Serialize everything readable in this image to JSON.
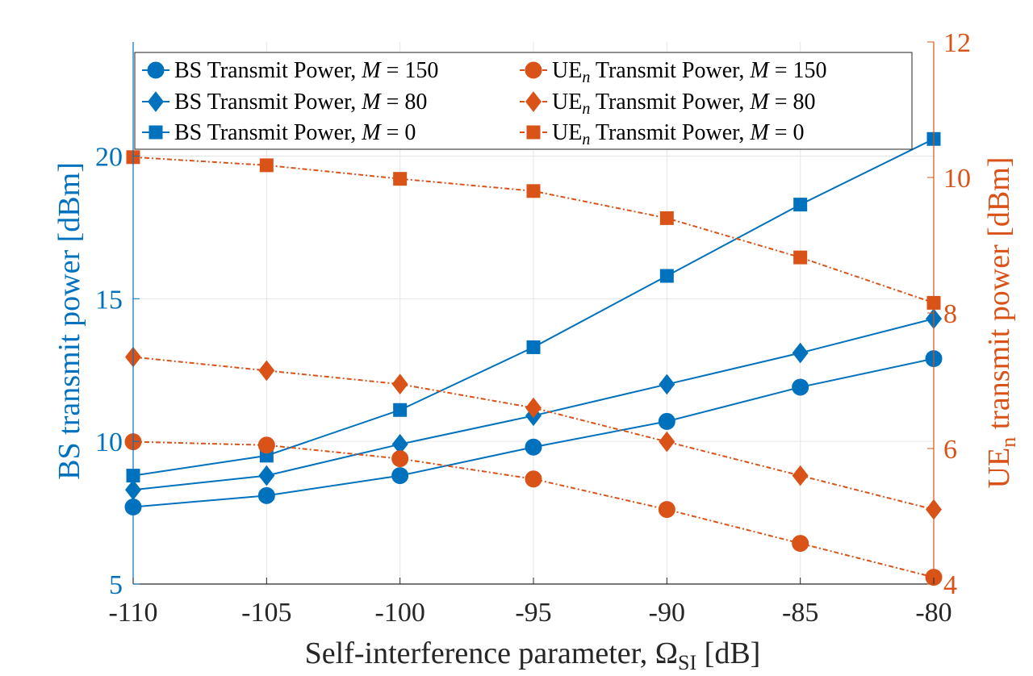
{
  "chart_data": {
    "type": "line",
    "x": [
      -110,
      -105,
      -100,
      -95,
      -90,
      -85,
      -80
    ],
    "xlim": [
      -110,
      -80
    ],
    "x_ticks": [
      "-110",
      "-105",
      "-100",
      "-95",
      "-90",
      "-85",
      "-80"
    ],
    "xlabel": "Self-interference parameter, Ω",
    "xlabel_sub": "SI",
    "xlabel_unit": " [dB]",
    "left_axis": {
      "label": "BS transmit power [dBm]",
      "ylim": [
        5,
        24
      ],
      "ticks": [
        "5",
        "10",
        "15",
        "20"
      ],
      "color": "#0072BD"
    },
    "right_axis": {
      "label": "UE",
      "label_sub": "n",
      "label_rest": " transmit power [dBm]",
      "ylim": [
        4,
        12
      ],
      "ticks": [
        "4",
        "6",
        "8",
        "10",
        "12"
      ],
      "color": "#D95319"
    },
    "grid": true,
    "legend_position": "top",
    "series": [
      {
        "name": "BS Transmit Power, M = 150",
        "axis": "left",
        "marker": "circle",
        "dash": "solid",
        "values": [
          7.7,
          8.1,
          8.8,
          9.8,
          10.7,
          11.9,
          12.9
        ]
      },
      {
        "name": "BS Transmit Power, M = 80",
        "axis": "left",
        "marker": "diamond",
        "dash": "solid",
        "values": [
          8.3,
          8.8,
          9.9,
          10.9,
          12.0,
          13.1,
          14.3
        ]
      },
      {
        "name": "BS Transmit Power, M = 0",
        "axis": "left",
        "marker": "square",
        "dash": "solid",
        "values": [
          8.8,
          9.5,
          11.1,
          13.3,
          15.8,
          18.3,
          20.6
        ]
      },
      {
        "name": "UEn Transmit Power, M = 150",
        "axis": "right",
        "marker": "circle",
        "dash": "dashdot",
        "values": [
          6.1,
          6.05,
          5.85,
          5.55,
          5.1,
          4.6,
          4.1
        ]
      },
      {
        "name": "UEn Transmit Power, M = 80",
        "axis": "right",
        "marker": "diamond",
        "dash": "dashdot",
        "values": [
          7.35,
          7.15,
          6.95,
          6.6,
          6.1,
          5.6,
          5.1
        ]
      },
      {
        "name": "UEn Transmit Power, M = 0",
        "axis": "right",
        "marker": "square",
        "dash": "dashdot",
        "values": [
          10.3,
          10.18,
          9.98,
          9.8,
          9.4,
          8.82,
          8.15
        ]
      }
    ],
    "legend": [
      {
        "prefix": "BS Transmit Power, ",
        "sub": "",
        "mid": "",
        "value": "150"
      },
      {
        "prefix": "UE",
        "sub": "n",
        "mid": " Transmit Power, ",
        "value": "150"
      },
      {
        "prefix": "BS Transmit Power, ",
        "sub": "",
        "mid": "",
        "value": "80"
      },
      {
        "prefix": "UE",
        "sub": "n",
        "mid": " Transmit Power, ",
        "value": "80"
      },
      {
        "prefix": "BS Transmit Power, ",
        "sub": "",
        "mid": "",
        "value": "0"
      },
      {
        "prefix": "UE",
        "sub": "n",
        "mid": " Transmit Power, ",
        "value": "0"
      }
    ],
    "legend_symbol": "M",
    "legend_equals": " = ",
    "colors": {
      "left": "#0072BD",
      "right": "#D95319",
      "grid": "#E6E6E6",
      "axis": "#262626"
    }
  }
}
